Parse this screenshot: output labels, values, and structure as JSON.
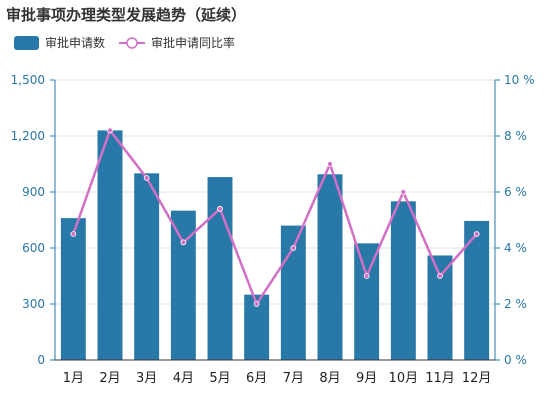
{
  "chart_data": {
    "type": "bar",
    "title": "审批事项办理类型发展趋势（延续）",
    "categories": [
      "1月",
      "2月",
      "3月",
      "4月",
      "5月",
      "6月",
      "7月",
      "8月",
      "9月",
      "10月",
      "11月",
      "12月"
    ],
    "series": [
      {
        "name": "审批申请数",
        "type": "bar",
        "axis": "left",
        "color": "#2878a8",
        "values": [
          760,
          1230,
          1000,
          800,
          980,
          350,
          720,
          995,
          625,
          850,
          560,
          745
        ]
      },
      {
        "name": "审批申请同比率",
        "type": "line",
        "axis": "right",
        "color": "#d36fc6",
        "values": [
          4.5,
          8.2,
          6.5,
          4.2,
          5.4,
          2.0,
          4.0,
          7.0,
          3.0,
          6.0,
          3.0,
          4.5
        ]
      }
    ],
    "y_left": {
      "min": 0,
      "max": 1500,
      "ticks": [
        0,
        300,
        600,
        900,
        1200,
        1500
      ],
      "tick_labels": [
        "0",
        "300",
        "600",
        "900",
        "1,200",
        "1,500"
      ]
    },
    "y_right": {
      "min": 0,
      "max": 10,
      "ticks": [
        0,
        2,
        4,
        6,
        8,
        10
      ],
      "tick_labels": [
        "0 %",
        "2 %",
        "4 %",
        "6 %",
        "8 %",
        "10 %"
      ]
    },
    "grid": true,
    "legend_position": "top-left",
    "axis_color": "#2878a8",
    "grid_color": "#e0e0e0"
  }
}
